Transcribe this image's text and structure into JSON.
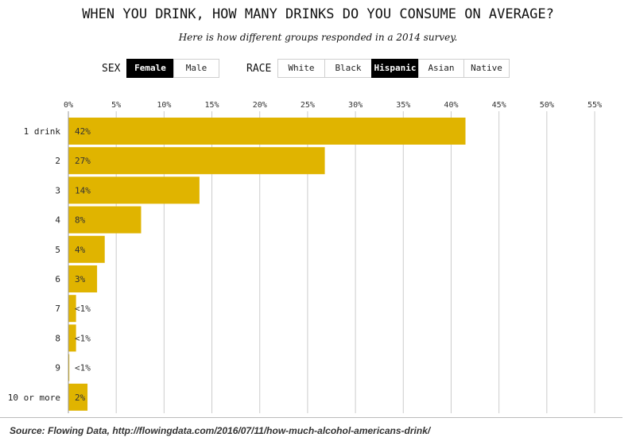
{
  "title": "WHEN YOU DRINK, HOW MANY DRINKS DO YOU CONSUME ON AVERAGE?",
  "subtitle": "Here is how different groups responded in a 2014 survey.",
  "filters": {
    "sex": {
      "label": "SEX",
      "options": [
        "Female",
        "Male"
      ],
      "selected": "Female"
    },
    "race": {
      "label": "RACE",
      "options": [
        "White",
        "Black",
        "Hispanic",
        "Asian",
        "Native"
      ],
      "selected": "Hispanic"
    }
  },
  "colors": {
    "bar": "#e0b400",
    "grid": "#cccccc",
    "active_bg": "#000000"
  },
  "chart_data": {
    "type": "bar",
    "orientation": "horizontal",
    "categories": [
      "1 drink",
      "2",
      "3",
      "4",
      "5",
      "6",
      "7",
      "8",
      "9",
      "10 or more"
    ],
    "values": [
      41.5,
      26.8,
      13.7,
      7.6,
      3.8,
      3.0,
      0.8,
      0.8,
      0.1,
      2.0
    ],
    "value_labels": [
      "42%",
      "27%",
      "14%",
      "8%",
      "4%",
      "3%",
      "<1%",
      "<1%",
      "<1%",
      "2%"
    ],
    "xlim": [
      0,
      55
    ],
    "xticks": [
      0,
      5,
      10,
      15,
      20,
      25,
      30,
      35,
      40,
      45,
      50,
      55
    ],
    "xtick_labels": [
      "0%",
      "5%",
      "10%",
      "15%",
      "20%",
      "25%",
      "30%",
      "35%",
      "40%",
      "45%",
      "50%",
      "55%"
    ],
    "grid": true,
    "axis_position": "top"
  },
  "source": "Source: Flowing Data, http://flowingdata.com/2016/07/11/how-much-alcohol-americans-drink/"
}
